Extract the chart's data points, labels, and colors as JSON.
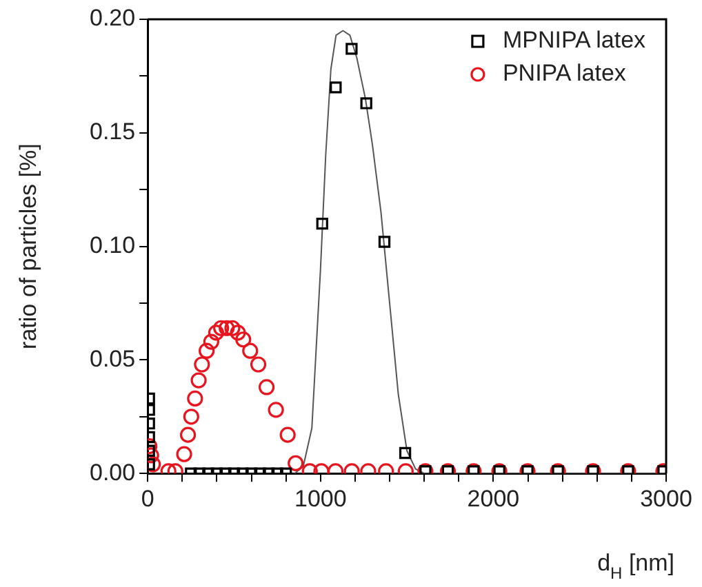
{
  "chart_data": {
    "type": "scatter",
    "xlabel": "d$_{H}$ [nm]",
    "ylabel": "ratio of particles [%]",
    "xlim": [
      0,
      3000
    ],
    "ylim": [
      0,
      0.2
    ],
    "xticks": [
      0,
      {
        "value": 200,
        "label": null
      },
      {
        "value": 400,
        "label": null
      },
      {
        "value": 600,
        "label": null
      },
      {
        "value": 800,
        "label": null
      },
      1000,
      {
        "value": 1200,
        "label": null
      },
      {
        "value": 1400,
        "label": null
      },
      {
        "value": 1600,
        "label": null
      },
      {
        "value": 1800,
        "label": null
      },
      2000,
      {
        "value": 2200,
        "label": null
      },
      {
        "value": 2400,
        "label": null
      },
      {
        "value": 2600,
        "label": null
      },
      {
        "value": 2800,
        "label": null
      },
      3000
    ],
    "yticks": [
      {
        "value": 0,
        "label": "0.00"
      },
      {
        "value": 0.025,
        "label": null
      },
      {
        "value": 0.05,
        "label": "0.05"
      },
      {
        "value": 0.075,
        "label": null
      },
      {
        "value": 0.1,
        "label": "0.10"
      },
      {
        "value": 0.125,
        "label": null
      },
      {
        "value": 0.15,
        "label": "0.15"
      },
      {
        "value": 0.175,
        "label": null
      },
      {
        "value": 0.2,
        "label": "0.20"
      }
    ],
    "grid": false,
    "legend": "top right",
    "series": [
      {
        "name": "MPNIPA latex",
        "color": "#000000",
        "marker": "square",
        "x": [
          8,
          8,
          8,
          8,
          8,
          8,
          250,
          300,
          350,
          400,
          450,
          500,
          550,
          600,
          650,
          700,
          750,
          800,
          1010,
          1088,
          1180,
          1265,
          1370,
          1490,
          1607,
          1737,
          1886,
          2035,
          2198,
          2374,
          2577,
          2780,
          2984
        ],
        "values": [
          0.033,
          0.028,
          0.022,
          0.016,
          0.01,
          0.004,
          0,
          0,
          0,
          0,
          0,
          0,
          0,
          0,
          0,
          0,
          0,
          0,
          0.11,
          0.17,
          0.187,
          0.163,
          0.102,
          0.009,
          0.001,
          0.001,
          0.001,
          0.001,
          0.001,
          0.001,
          0.001,
          0.001,
          0.001
        ]
      },
      {
        "name": "PNIPA latex",
        "color": "#e8141e",
        "marker": "circle",
        "x": [
          10,
          20,
          30,
          50,
          80,
          120,
          160,
          211,
          233,
          252,
          274,
          295,
          314,
          341,
          368,
          396,
          425,
          457,
          490,
          522,
          553,
          593,
          640,
          688,
          742,
          810,
          856,
          938,
          1005,
          1087,
          1181,
          1276,
          1379,
          1493,
          1607,
          1737,
          1886,
          2035,
          2198,
          2374,
          2577,
          2780,
          2984
        ],
        "values": [
          0.012,
          0.008,
          0.004,
          null,
          null,
          0.001,
          0.001,
          0.0085,
          0.017,
          0.025,
          0.033,
          0.041,
          0.048,
          0.054,
          0.058,
          0.062,
          0.064,
          0.064,
          0.064,
          0.062,
          0.059,
          0.054,
          0.048,
          0.038,
          0.028,
          0.017,
          0.0045,
          0.001,
          0.001,
          0.001,
          0.001,
          0.001,
          0.001,
          0.001,
          0.001,
          0.001,
          0.001,
          0.001,
          0.001,
          0.001,
          0.001,
          0.001,
          0.001
        ]
      },
      {
        "type": "line",
        "color": "#555555",
        "marker": "none",
        "x": [
          850,
          900,
          950,
          1000,
          1030,
          1060,
          1090,
          1130,
          1170,
          1210,
          1260,
          1300,
          1350,
          1400,
          1450,
          1500,
          1550,
          1600,
          3000
        ],
        "values": [
          0,
          0.003,
          0.02,
          0.09,
          0.14,
          0.178,
          0.193,
          0.195,
          0.193,
          0.183,
          0.165,
          0.145,
          0.115,
          0.075,
          0.035,
          0.01,
          0.002,
          0,
          0
        ]
      }
    ]
  }
}
